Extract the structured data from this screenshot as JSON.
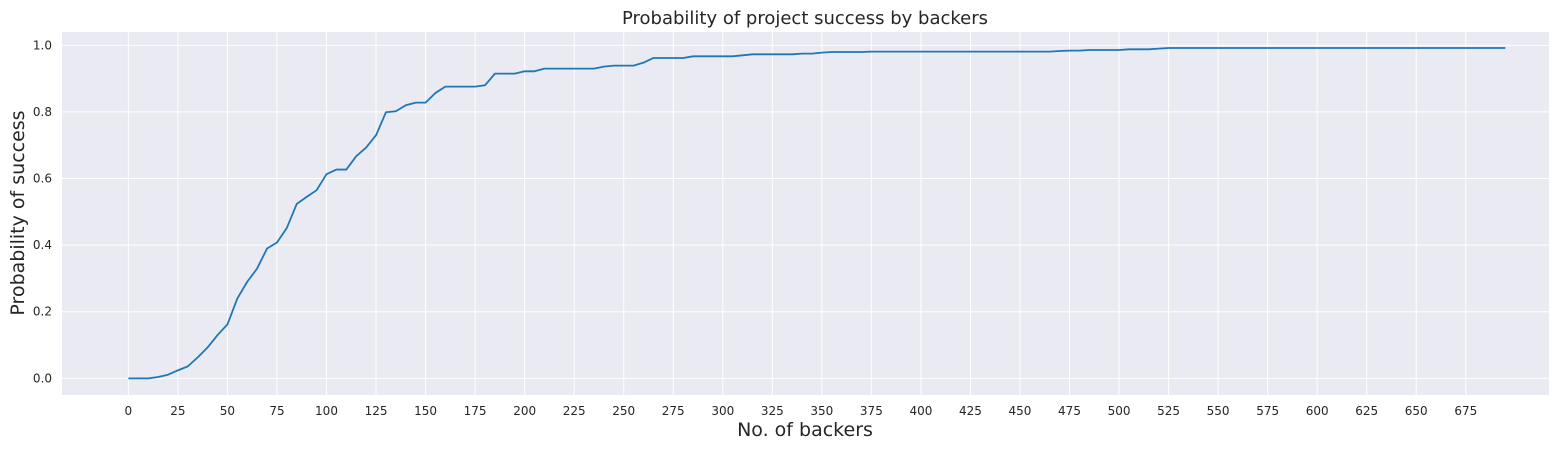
{
  "chart_data": {
    "type": "line",
    "title": "Probability of project success by backers",
    "xlabel": "No. of backers",
    "ylabel": "Probability of success",
    "xlim": [
      -33.5,
      717
    ],
    "ylim": [
      -0.05,
      1.04
    ],
    "xticks": [
      0,
      25,
      50,
      75,
      100,
      125,
      150,
      175,
      200,
      225,
      250,
      275,
      300,
      325,
      350,
      375,
      400,
      425,
      450,
      475,
      500,
      525,
      550,
      575,
      600,
      625,
      650,
      675
    ],
    "yticks": [
      0.0,
      0.2,
      0.4,
      0.6,
      0.8,
      1.0
    ],
    "ytick_labels": [
      "0.0",
      "0.2",
      "0.4",
      "0.6",
      "0.8",
      "1.0"
    ],
    "grid": true,
    "background": "#eaeaf2",
    "grid_color": "#ffffff",
    "line_color": "#1f77b4",
    "series": [
      {
        "x": [
          0,
          5,
          10,
          15,
          20,
          25,
          30,
          35,
          40,
          45,
          50,
          55,
          60,
          65,
          70,
          75,
          80,
          85,
          90,
          95,
          100,
          105,
          110,
          115,
          120,
          125,
          130,
          135,
          140,
          145,
          150,
          155,
          160,
          165,
          170,
          175,
          180,
          185,
          190,
          195,
          200,
          205,
          210,
          215,
          220,
          225,
          230,
          235,
          240,
          245,
          250,
          255,
          260,
          265,
          270,
          275,
          280,
          285,
          290,
          295,
          300,
          305,
          310,
          315,
          320,
          325,
          330,
          335,
          340,
          345,
          350,
          355,
          360,
          365,
          370,
          375,
          465,
          470,
          475,
          480,
          485,
          490,
          495,
          500,
          505,
          510,
          515,
          520,
          525,
          530,
          695
        ],
        "values": [
          0.0,
          0.0,
          0.0,
          0.004,
          0.011,
          0.024,
          0.036,
          0.063,
          0.093,
          0.13,
          0.162,
          0.24,
          0.29,
          0.33,
          0.39,
          0.408,
          0.452,
          0.524,
          0.545,
          0.565,
          0.613,
          0.627,
          0.627,
          0.667,
          0.693,
          0.73,
          0.799,
          0.802,
          0.82,
          0.828,
          0.828,
          0.857,
          0.876,
          0.876,
          0.876,
          0.876,
          0.88,
          0.915,
          0.915,
          0.915,
          0.922,
          0.922,
          0.93,
          0.93,
          0.93,
          0.93,
          0.93,
          0.93,
          0.936,
          0.939,
          0.939,
          0.939,
          0.948,
          0.962,
          0.962,
          0.962,
          0.962,
          0.967,
          0.967,
          0.967,
          0.967,
          0.967,
          0.97,
          0.973,
          0.973,
          0.973,
          0.973,
          0.973,
          0.975,
          0.975,
          0.978,
          0.98,
          0.98,
          0.98,
          0.98,
          0.981,
          0.981,
          0.983,
          0.984,
          0.984,
          0.986,
          0.986,
          0.986,
          0.986,
          0.988,
          0.988,
          0.988,
          0.99,
          0.992,
          0.992,
          0.992
        ]
      }
    ]
  }
}
